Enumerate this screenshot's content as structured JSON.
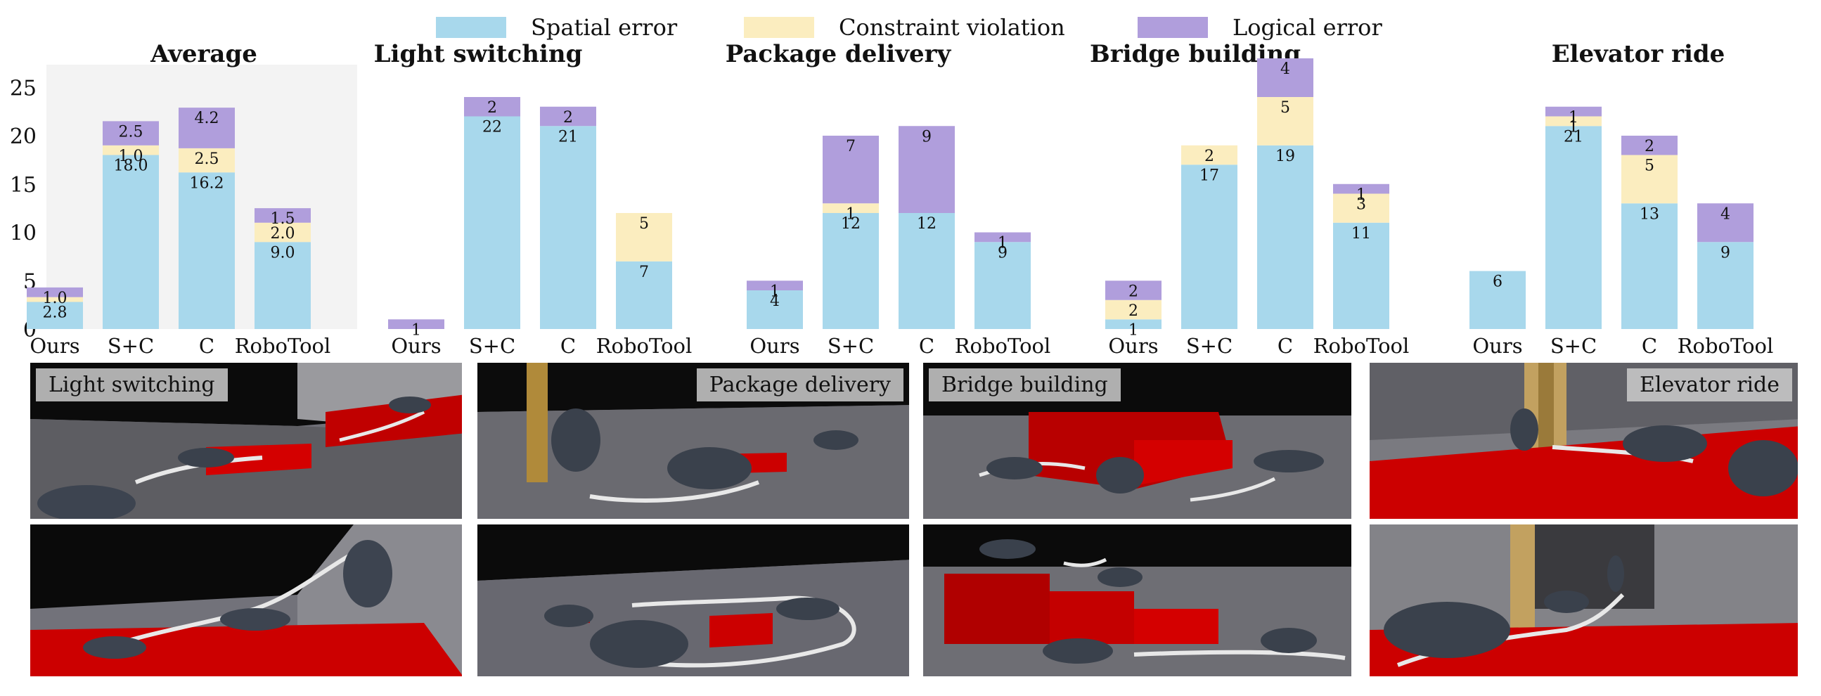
{
  "chart_data": {
    "type": "bar",
    "stacked": true,
    "legend": [
      {
        "name": "Spatial error",
        "color": "#a8d8ec"
      },
      {
        "name": "Constraint violation",
        "color": "#fbedbf"
      },
      {
        "name": "Logical error",
        "color": "#b09edc"
      }
    ],
    "categories": [
      "Ours",
      "S+C",
      "C",
      "RoboTool"
    ],
    "y_ticks": [
      "0",
      "5",
      "10",
      "15",
      "20",
      "25"
    ],
    "ylim": [
      0,
      28
    ],
    "panels": [
      {
        "title": "Average",
        "series": [
          {
            "name": "Spatial error",
            "values": [
              2.8,
              18.0,
              16.2,
              9.0
            ],
            "labels": [
              "2.8",
              "18.0",
              "16.2",
              "9.0"
            ]
          },
          {
            "name": "Constraint violation",
            "values": [
              0.5,
              1.0,
              2.5,
              2.0
            ],
            "labels": [
              "",
              "1.0",
              "2.5",
              "2.0"
            ]
          },
          {
            "name": "Logical error",
            "values": [
              1.0,
              2.5,
              4.2,
              1.5
            ],
            "labels": [
              "1.0",
              "2.5",
              "4.2",
              "1.5"
            ]
          }
        ]
      },
      {
        "title": "Light switching",
        "series": [
          {
            "name": "Spatial error",
            "values": [
              0,
              22,
              21,
              7
            ],
            "labels": [
              "",
              "22",
              "21",
              "7"
            ]
          },
          {
            "name": "Constraint violation",
            "values": [
              0,
              0,
              0,
              5
            ],
            "labels": [
              "",
              "",
              "",
              "5"
            ]
          },
          {
            "name": "Logical error",
            "values": [
              1,
              2,
              2,
              0
            ],
            "labels": [
              "1",
              "2",
              "2",
              ""
            ]
          }
        ]
      },
      {
        "title": "Package delivery",
        "series": [
          {
            "name": "Spatial error",
            "values": [
              4,
              12,
              12,
              9
            ],
            "labels": [
              "4",
              "12",
              "12",
              "9"
            ]
          },
          {
            "name": "Constraint violation",
            "values": [
              0,
              1,
              0,
              0
            ],
            "labels": [
              "",
              "1",
              "",
              ""
            ]
          },
          {
            "name": "Logical error",
            "values": [
              1,
              7,
              9,
              1
            ],
            "labels": [
              "1",
              "7",
              "9",
              "1"
            ]
          }
        ]
      },
      {
        "title": "Bridge building",
        "series": [
          {
            "name": "Spatial error",
            "values": [
              1,
              17,
              19,
              11
            ],
            "labels": [
              "1",
              "17",
              "19",
              "11"
            ]
          },
          {
            "name": "Constraint violation",
            "values": [
              2,
              2,
              5,
              3
            ],
            "labels": [
              "2",
              "2",
              "5",
              "3"
            ]
          },
          {
            "name": "Logical error",
            "values": [
              2,
              0,
              4,
              1
            ],
            "labels": [
              "2",
              "",
              "4",
              "1"
            ]
          }
        ]
      },
      {
        "title": "Elevator ride",
        "series": [
          {
            "name": "Spatial error",
            "values": [
              6,
              21,
              13,
              9
            ],
            "labels": [
              "6",
              "21",
              "13",
              "9"
            ]
          },
          {
            "name": "Constraint violation",
            "values": [
              0,
              1,
              5,
              0
            ],
            "labels": [
              "",
              "1",
              "5",
              ""
            ]
          },
          {
            "name": "Logical error",
            "values": [
              0,
              1,
              2,
              4
            ],
            "labels": [
              "",
              "1",
              "2",
              "4"
            ]
          }
        ]
      }
    ]
  },
  "scenes": [
    {
      "label": "Light switching"
    },
    {
      "label": "Package delivery"
    },
    {
      "label": "Bridge building"
    },
    {
      "label": "Elevator ride"
    }
  ]
}
